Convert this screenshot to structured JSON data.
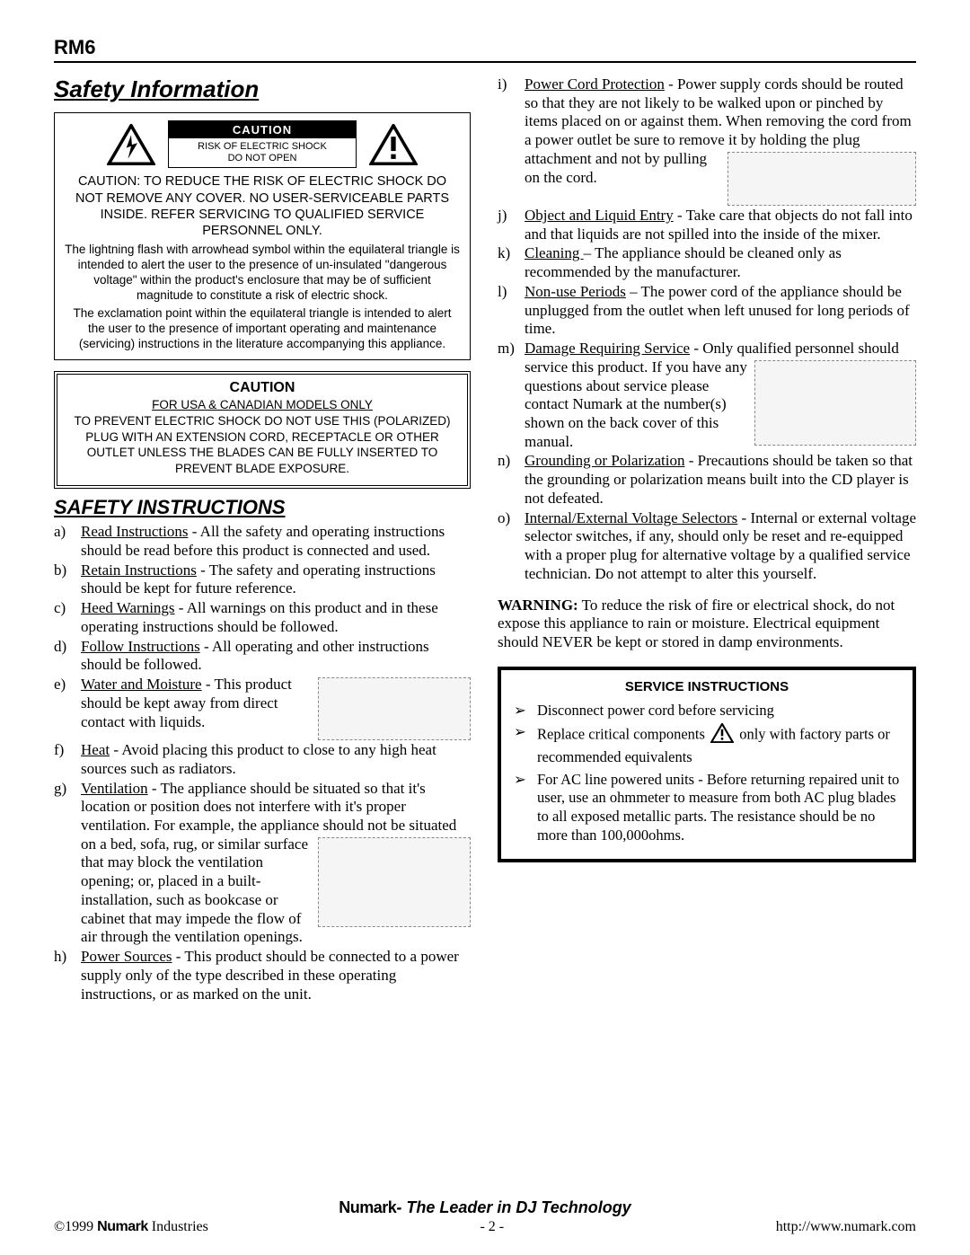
{
  "header": {
    "model": "RM6"
  },
  "section1": {
    "title": "Safety Information",
    "caution_label": "CAUTION",
    "caution_risk": "RISK OF ELECTRIC SHOCK\nDO NOT OPEN",
    "caution_body": "CAUTION: TO REDUCE THE RISK OF ELECTRIC SHOCK DO NOT REMOVE ANY COVER.  NO USER-SERVICEABLE PARTS INSIDE. REFER SERVICING TO QUALIFIED SERVICE PERSONNEL ONLY.",
    "caution_sub1": "The lightning flash with arrowhead symbol within the equilateral triangle is intended to alert the user to the presence of un-insulated \"dangerous voltage\" within the product's enclosure that may be of sufficient magnitude to constitute a risk of electric shock.",
    "caution_sub2": "The exclamation point within the equilateral triangle is intended to alert the user to the presence of important operating and maintenance (servicing) instructions in the literature accompanying this appliance."
  },
  "caution_box2": {
    "head": "CAUTION",
    "sub": "FOR USA & CANADIAN  MODELS ONLY",
    "body": "TO PREVENT ELECTRIC SHOCK DO NOT USE THIS (POLARIZED) PLUG WITH AN EXTENSION CORD, RECEPTACLE OR OTHER OUTLET UNLESS THE BLADES CAN BE FULLY INSERTED TO PREVENT BLADE EXPOSURE."
  },
  "instructions": {
    "title": "SAFETY INSTRUCTIONS",
    "items": [
      {
        "m": "a)",
        "h": "Read Instructions",
        "t": " - All the safety and operating instructions should be read before this product is connected and used."
      },
      {
        "m": "b)",
        "h": "Retain Instructions",
        "t": " - The safety and operating instructions should be kept for future reference."
      },
      {
        "m": "c)",
        "h": "Heed Warnings",
        "t": " - All warnings on this product and in these operating instructions should be followed."
      },
      {
        "m": "d)",
        "h": "Follow Instructions",
        "t": " - All operating and other instructions should be followed."
      },
      {
        "m": "e)",
        "h": "Water and Moisture",
        "t": " - This product should be kept away from direct contact with liquids.",
        "ill_w": 170,
        "ill_h": 70
      },
      {
        "m": "f)",
        "h": "Heat",
        "t": " - Avoid placing this product to close to any high heat sources such as radiators."
      },
      {
        "m": "g)",
        "h": "Ventilation",
        "t": " - The appliance should be situated so that it's location or position does not interfere with it's proper ventilation.  For example, the appliance should not be situated on a bed, sofa, rug, or similar surface that may block the ventilation opening; or, placed in a built-installation, such as bookcase or cabinet that may impede the flow of air through the ventilation openings.",
        "ill_w": 170,
        "ill_h": 100,
        "ill_after": 210
      },
      {
        "m": "h)",
        "h": "Power Sources",
        "t": " - This product should be connected to a power supply only of the type described in these operating instructions, or as marked on the unit."
      }
    ],
    "items_right": [
      {
        "m": "i)",
        "h": "Power Cord Protection",
        "t": " - Power supply cords should be routed so that they are not likely to be walked upon or pinched by items placed on or against them.  When removing the cord from a power outlet be sure to remove it by holding the plug attachment and not by pulling on the cord.",
        "ill_w": 210,
        "ill_h": 60,
        "ill_after": 200
      },
      {
        "m": "j)",
        "h": "Object and Liquid Entry",
        "t": " - Take care that objects do not fall into and that liquids are not spilled into the inside of the mixer."
      },
      {
        "m": "k)",
        "h": "Cleaning ",
        "t": "– The appliance should be cleaned only as recommended by the manufacturer."
      },
      {
        "m": "l)",
        "h": "Non-use Periods",
        "t": " – The power cord of the appliance should be unplugged from the outlet when left unused for long periods of time."
      },
      {
        "m": "m)",
        "h": "Damage Requiring Service",
        "t": " - Only qualified personnel should service this product. If you have any questions about service please contact Numark at the number(s) shown on the back cover of this manual.",
        "ill_w": 180,
        "ill_h": 95,
        "ill_after": 55
      },
      {
        "m": "n)",
        "h": "Grounding or Polarization",
        "t": " - Precautions should be taken so that the grounding or polarization means built into the CD player is not defeated."
      },
      {
        "m": "o)",
        "h": "Internal/External Voltage Selectors",
        "t": " - Internal or external voltage selector switches, if any, should only be reset and re-equipped with a proper plug for alternative voltage by a qualified service technician. Do not attempt to alter this yourself."
      }
    ]
  },
  "warning": {
    "bold": "WARNING:",
    "text": " To reduce the risk of fire or electrical shock, do not expose this appliance to rain or moisture. Electrical equipment should NEVER be kept or stored in damp environments."
  },
  "service_box": {
    "head": "SERVICE INSTRUCTIONS",
    "items": [
      {
        "pre": "Disconnect power cord before servicing",
        "tri": false,
        "post": ""
      },
      {
        "pre": "Replace critical components ",
        "tri": true,
        "post": " only with factory parts or recommended equivalents"
      },
      {
        "pre": "For AC line powered units - Before returning repaired unit to user, use an ohmmeter to measure from both AC plug blades to all exposed metallic parts.  The resistance should be no more than 100,000ohms.",
        "tri": false,
        "post": ""
      }
    ]
  },
  "footer": {
    "brand": "Numark",
    "tagline": "- The Leader in DJ Technology",
    "copyright_pre": "©1999 ",
    "copyright_post": " Industries",
    "page": "- 2 -",
    "url": "http://www.numark.com"
  },
  "colors": {
    "text": "#000000",
    "bg": "#ffffff",
    "illus_border": "#888888",
    "illus_bg": "#f5f5f5"
  }
}
